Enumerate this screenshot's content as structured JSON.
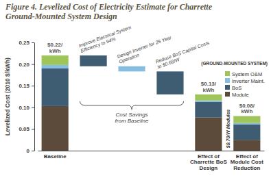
{
  "chart_data": {
    "type": "waterfall",
    "title": "Figure 4. Levelized Cost of Electricity Estimate for Charrette Ground-Mounted System Design",
    "y_label": "Levelized Cost (2010 $/kWh)",
    "categories": [
      "Baseline",
      null,
      null,
      null,
      "Effect of Charrette BoS Design",
      "Effect of Module Cost Reduction"
    ],
    "series": [
      {
        "name": "Module",
        "color": "#5c4a3a",
        "values": [
          0.103,
          null,
          null,
          null,
          0.077,
          0.025
        ]
      },
      {
        "name": "BoS",
        "color": "#3e5c72",
        "values": [
          0.087,
          null,
          null,
          null,
          0.036,
          0.036
        ]
      },
      {
        "name": "Inverter Maint.",
        "color": "#86bde0",
        "values": [
          0.008,
          null,
          null,
          null,
          0.003,
          0.003
        ]
      },
      {
        "name": "System O&M",
        "color": "#9fc55a",
        "values": [
          0.022,
          null,
          null,
          null,
          0.014,
          0.016
        ]
      }
    ],
    "steps": {
      "values": [
        null,
        -0.025,
        -0.012,
        -0.053,
        null,
        null
      ],
      "colors": [
        null,
        "#3e5c72",
        "#86bde0",
        "#3e5c72",
        null,
        null
      ],
      "labels": [
        null,
        "Improve Electrical System Efficiency to 94%",
        "Design Inverter for 25 Year Operation",
        "Reduce BoS Capital Costs to $0.68/W",
        null,
        null
      ]
    },
    "total_labels": [
      "$0.22/ kWh",
      null,
      null,
      null,
      "$0.13/ kWh",
      "$0.08/ kWh"
    ],
    "savings_label": "Cost Savings from Baseline",
    "module_label": "$0.70/W Modules",
    "system_label": "(GROUND-MOUNTED SYSTEM)",
    "ylim": [
      0,
      0.25
    ],
    "yticks": [
      0,
      0.05,
      {
        "value": 0.1,
        "label": "0.10"
      },
      0.15,
      {
        "value": 0.2,
        "label": "0.20"
      },
      0.25
    ],
    "stacked": true,
    "legend": "right"
  }
}
